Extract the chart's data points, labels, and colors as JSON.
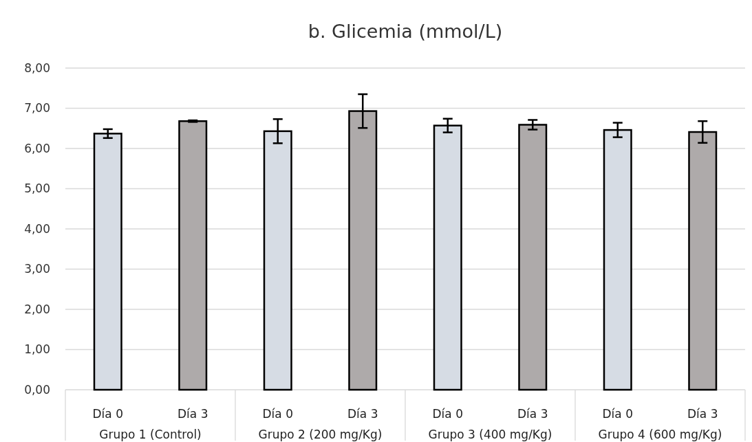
{
  "chart_data": {
    "type": "bar",
    "title": "b. Glicemia (mmol/L)",
    "categories": [
      "Día 0",
      "Día 3",
      "Día 0",
      "Día 3",
      "Día 0",
      "Día 3",
      "Día 0",
      "Día 3"
    ],
    "values": [
      6.37,
      6.68,
      6.43,
      6.93,
      6.57,
      6.59,
      6.46,
      6.41
    ],
    "errors": [
      0.11,
      0.02,
      0.3,
      0.42,
      0.17,
      0.12,
      0.18,
      0.27
    ],
    "colors": [
      "#d6dce4",
      "#aeaaaa",
      "#d6dce4",
      "#aeaaaa",
      "#d6dce4",
      "#aeaaaa",
      "#d6dce4",
      "#aeaaaa"
    ],
    "ylim": [
      0,
      8
    ],
    "yticks": [
      {
        "value": 0,
        "label": "0,00"
      },
      {
        "value": 1,
        "label": "1,00"
      },
      {
        "value": 2,
        "label": "2,00"
      },
      {
        "value": 3,
        "label": "3,00"
      },
      {
        "value": 4,
        "label": "4,00"
      },
      {
        "value": 5,
        "label": "5,00"
      },
      {
        "value": 6,
        "label": "6,00"
      },
      {
        "value": 7,
        "label": "7,00"
      },
      {
        "value": 8,
        "label": "8,00"
      }
    ],
    "grid": "y",
    "annotations": [
      "Grupo 1 (Control)",
      "Grupo 2 (200 mg/Kg)",
      "Grupo 3 (400 mg/Kg)",
      "Grupo 4 (600 mg/Kg)"
    ]
  }
}
